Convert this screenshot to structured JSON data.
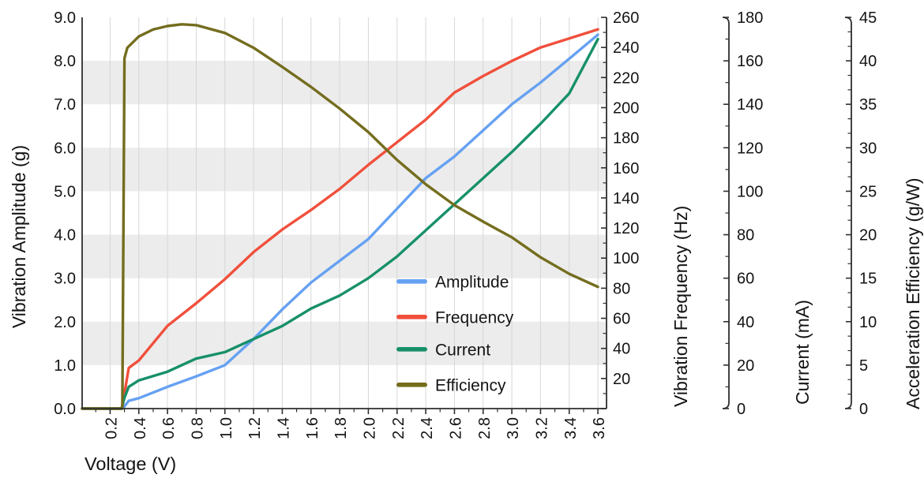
{
  "chart_data": {
    "type": "line",
    "title": "",
    "background": "#ffffff",
    "band_color": "#ececec",
    "grid_color": "#d7d7d7",
    "axis_color": "#2e2e2e",
    "text_color": "#141414",
    "bands_left_units": [
      [
        1,
        2
      ],
      [
        3,
        4
      ],
      [
        5,
        6
      ],
      [
        7,
        8
      ]
    ],
    "axes": {
      "x": {
        "label": "Voltage (V)",
        "min": 0.005,
        "max": 3.66,
        "tick_labels": [
          "0.2",
          "0.4",
          "0.6",
          "0.8",
          "1.0",
          "1.2",
          "1.4",
          "1.6",
          "1.8",
          "2.0",
          "2.2",
          "2.4",
          "2.6",
          "2.8",
          "3.0",
          "3.2",
          "3.4",
          "3.6"
        ],
        "minor_step": 0.1
      },
      "left": {
        "label": "Vibration Amplitude (g)",
        "min": 0,
        "max": 9,
        "tick_labels": [
          "0.0",
          "1.0",
          "2.0",
          "3.0",
          "4.0",
          "5.0",
          "6.0",
          "7.0",
          "8.0",
          "9.0"
        ]
      },
      "frequency": {
        "label": "Vibration Frequency (Hz)",
        "min": 0,
        "max": 260,
        "major_step": 20,
        "minor_step": 10,
        "first_labeled": 20
      },
      "current": {
        "label": "Current (mA)",
        "min": 0,
        "max": 180,
        "major_step": 20,
        "minor_step": 10,
        "first_labeled": 0
      },
      "efficiency": {
        "label": "Acceleration Efficiency (g/W)",
        "min": 0,
        "max": 45,
        "major_step": 5,
        "minor_divisions": 3,
        "first_labeled": 0
      }
    },
    "series": [
      {
        "name": "Amplitude",
        "axis": "left",
        "unit": "g",
        "color": "#66a1f2",
        "x": [
          0.005,
          0.28,
          0.3,
          0.33,
          0.4,
          0.6,
          0.8,
          1.0,
          1.2,
          1.4,
          1.6,
          1.8,
          2.0,
          2.2,
          2.4,
          2.6,
          2.8,
          3.0,
          3.2,
          3.4,
          3.6
        ],
        "y": [
          0,
          0,
          0.05,
          0.18,
          0.24,
          0.5,
          0.74,
          1.0,
          1.6,
          2.28,
          2.9,
          3.4,
          3.9,
          4.6,
          5.3,
          5.8,
          6.4,
          7.0,
          7.5,
          8.05,
          8.6
        ]
      },
      {
        "name": "Frequency",
        "axis": "frequency",
        "unit": "Hz",
        "color": "#f0503c",
        "x": [
          0.005,
          0.28,
          0.3,
          0.33,
          0.4,
          0.6,
          0.8,
          1.0,
          1.2,
          1.4,
          1.6,
          1.8,
          2.0,
          2.2,
          2.4,
          2.6,
          2.8,
          3.0,
          3.2,
          3.4,
          3.6
        ],
        "y": [
          0,
          0,
          10,
          27,
          32,
          55,
          70,
          86,
          104,
          119,
          132,
          146,
          162,
          177,
          192,
          210,
          221,
          231,
          240,
          246,
          252
        ]
      },
      {
        "name": "Current",
        "axis": "current",
        "unit": "mA",
        "color": "#17906a",
        "x": [
          0.005,
          0.28,
          0.3,
          0.33,
          0.4,
          0.6,
          0.8,
          1.0,
          1.2,
          1.4,
          1.6,
          1.8,
          2.0,
          2.2,
          2.4,
          2.6,
          2.8,
          3.0,
          3.2,
          3.4,
          3.6
        ],
        "y": [
          0,
          0,
          5,
          10,
          13,
          17,
          23,
          26,
          32,
          38,
          46,
          52,
          60,
          70,
          82,
          94,
          106,
          118,
          131,
          145,
          170
        ]
      },
      {
        "name": "Efficiency",
        "axis": "efficiency",
        "unit": "g/W",
        "color": "#746d1e",
        "x": [
          0.005,
          0.285,
          0.3,
          0.32,
          0.4,
          0.5,
          0.6,
          0.7,
          0.8,
          1.0,
          1.2,
          1.4,
          1.6,
          1.8,
          2.0,
          2.2,
          2.4,
          2.6,
          2.8,
          3.0,
          3.2,
          3.4,
          3.6
        ],
        "y": [
          0,
          0,
          40.3,
          41.5,
          42.8,
          43.6,
          44.0,
          44.2,
          44.1,
          43.2,
          41.5,
          39.3,
          37.0,
          34.5,
          31.8,
          28.6,
          25.8,
          23.4,
          21.5,
          19.7,
          17.4,
          15.5,
          14.0
        ]
      }
    ],
    "legend": {
      "items": [
        "Amplitude",
        "Frequency",
        "Current",
        "Efficiency"
      ]
    }
  }
}
